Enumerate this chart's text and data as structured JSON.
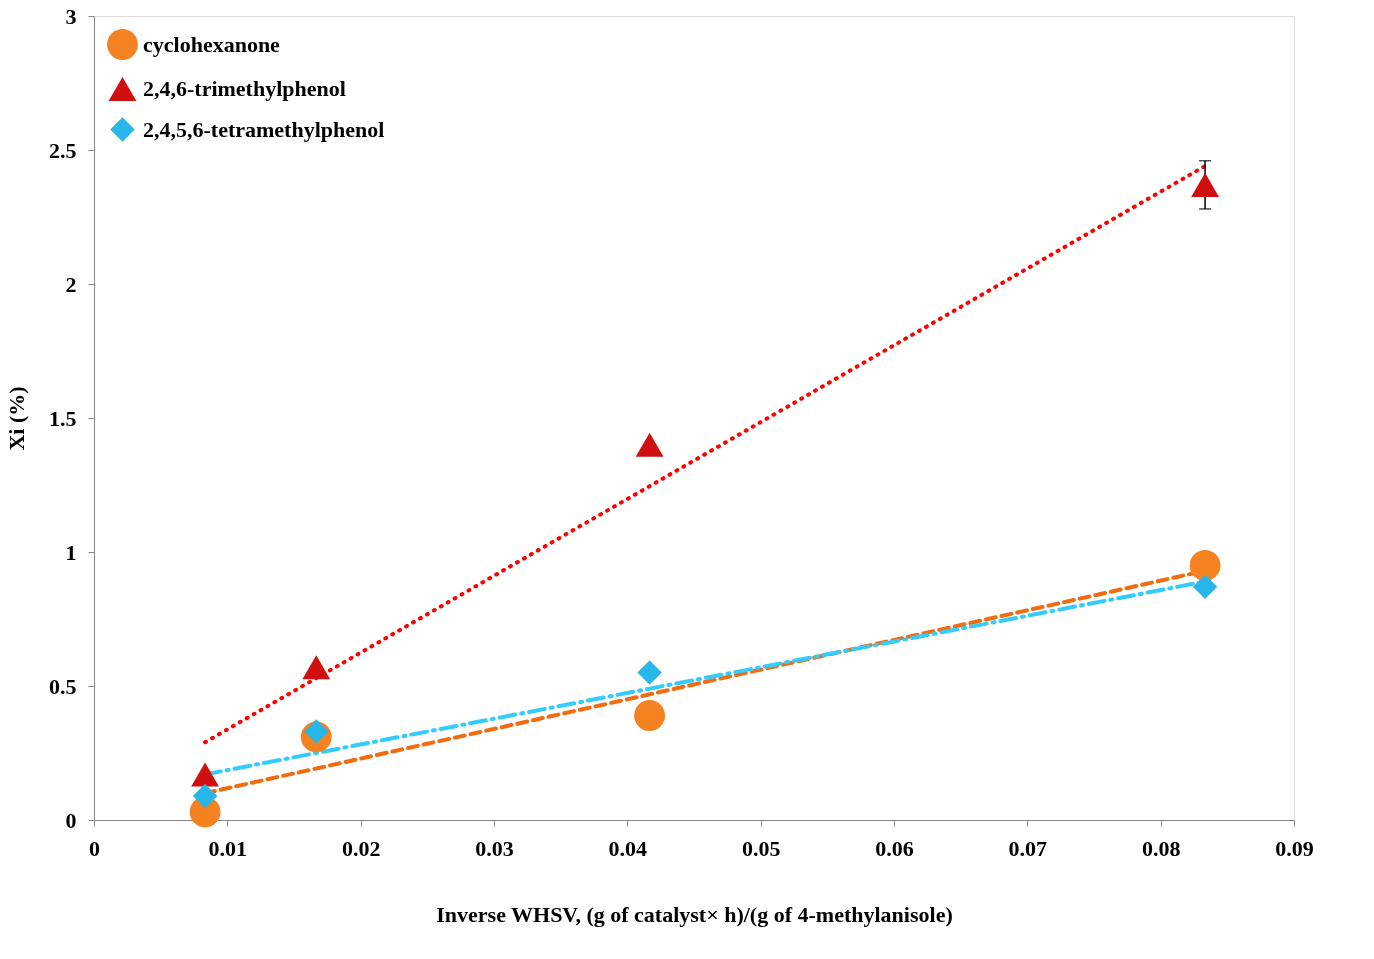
{
  "chart_data": {
    "type": "scatter",
    "xlabel": "Inverse WHSV, (g of catalyst× h)/(g of 4-methylanisole)",
    "ylabel": "Xi (%)",
    "xlim": [
      0,
      0.09
    ],
    "xticks": [
      0,
      0.01,
      0.02,
      0.03,
      0.04,
      0.05,
      0.06,
      0.07,
      0.08,
      0.09
    ],
    "ylim": [
      0,
      3
    ],
    "yticks": [
      0,
      0.5,
      1,
      1.5,
      2,
      2.5,
      3
    ],
    "grid": false,
    "legend": "top left",
    "series": [
      {
        "name": "cyclohexanone",
        "marker": "circle",
        "color": "#f58220",
        "x": [
          0.00833,
          0.01667,
          0.04167,
          0.08333
        ],
        "values": [
          0.03,
          0.31,
          0.39,
          0.95
        ]
      },
      {
        "name": "2,4,6-trimethylphenol",
        "marker": "triangle",
        "color": "#d01010",
        "x": [
          0.00833,
          0.01667,
          0.04167,
          0.08333
        ],
        "values": [
          0.17,
          0.57,
          1.4,
          2.37
        ],
        "errors": [
          null,
          null,
          null,
          0.09
        ]
      },
      {
        "name": "2,4,5,6-tetramethylphenol",
        "marker": "diamond",
        "color": "#29b6e8",
        "x": [
          0.00833,
          0.01667,
          0.04167,
          0.08333
        ],
        "values": [
          0.09,
          0.33,
          0.55,
          0.87
        ]
      },
      {
        "type": "line",
        "line_style": "dotted",
        "color": "#ff0000",
        "x": [
          0.00833,
          0.08333
        ],
        "values": [
          0.29,
          2.44
        ]
      },
      {
        "type": "line",
        "line_style": "dashed",
        "color": "#f26b0f",
        "x": [
          0.00833,
          0.08333
        ],
        "values": [
          0.1,
          0.93
        ]
      },
      {
        "type": "line",
        "line_style": "dashdot",
        "color": "#33ccff",
        "x": [
          0.00833,
          0.08333
        ],
        "values": [
          0.17,
          0.89
        ]
      }
    ]
  }
}
